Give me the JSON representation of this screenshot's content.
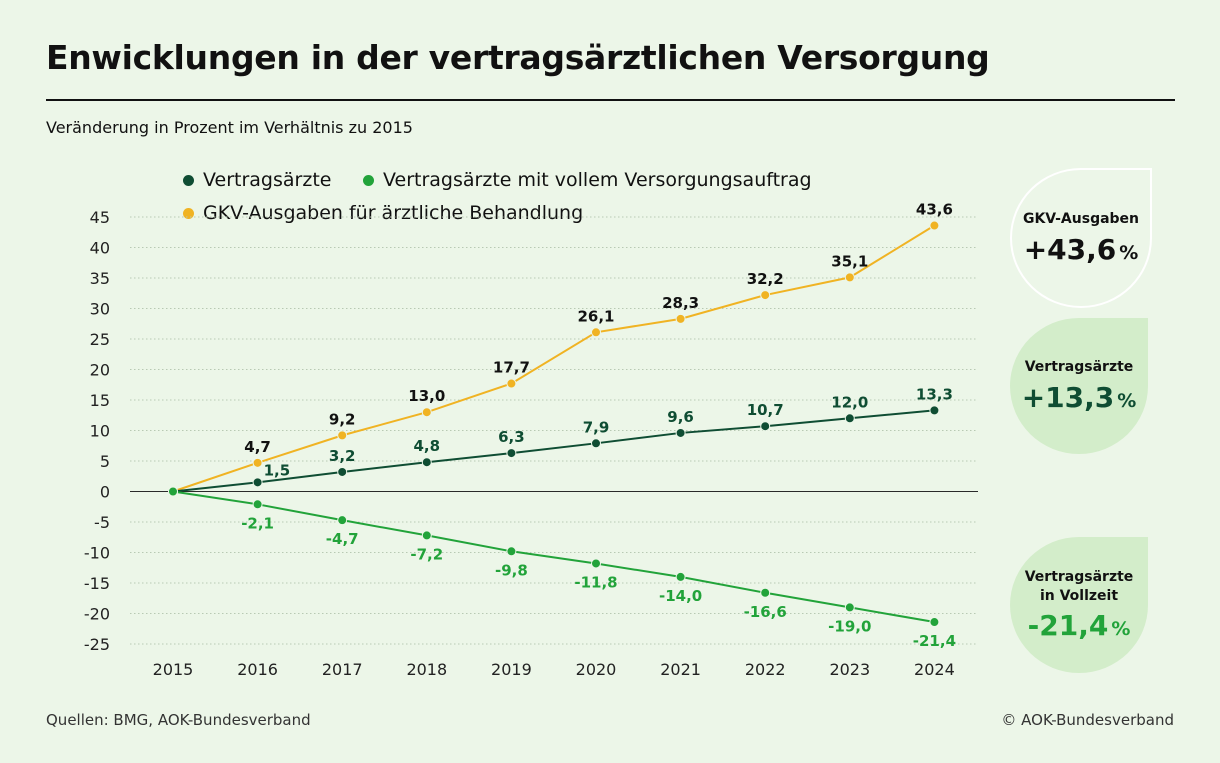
{
  "title": "Enwicklungen in der vertragsärztlichen Versorgung",
  "subtitle": "Veränderung in Prozent im Verhältnis zu 2015",
  "footer": {
    "source": "Quellen: BMG, AOK-Bundesverband",
    "copyright": "© AOK-Bundesverband"
  },
  "colors": {
    "background": "#ecf6e8",
    "dark_green": "#0f4d33",
    "green": "#22a33a",
    "yellow": "#f0b323",
    "grid": "#b8c9b3"
  },
  "cards": {
    "gkv": {
      "label": "GKV-Ausgaben",
      "value": "+43,6",
      "unit": "%"
    },
    "aerzte": {
      "label": "Vertragsärzte",
      "value": "+13,3",
      "unit": "%"
    },
    "vollzeit": {
      "label_line1": "Vertragsärzte",
      "label_line2": "in Vollzeit",
      "value": "-21,4",
      "unit": "%"
    }
  },
  "chart_data": {
    "type": "line",
    "title": "Enwicklungen in der vertragsärztlichen Versorgung",
    "ylabel": "Veränderung in Prozent im Verhältnis zu 2015",
    "ylim": [
      -25,
      45
    ],
    "yticks": [
      45,
      40,
      35,
      30,
      25,
      20,
      15,
      10,
      5,
      0,
      -5,
      -10,
      -15,
      -20,
      -25
    ],
    "grid": true,
    "legend_position": "top",
    "categories": [
      "2015",
      "2016",
      "2017",
      "2018",
      "2019",
      "2020",
      "2021",
      "2022",
      "2023",
      "2024"
    ],
    "series": [
      {
        "key": "gkv",
        "name": "GKV-Ausgaben für ärztliche Behandlung",
        "color": "#f0b323",
        "label_color": "#111111",
        "values": [
          0,
          4.7,
          9.2,
          13.0,
          17.7,
          26.1,
          28.3,
          32.2,
          35.1,
          43.6
        ],
        "labels": [
          "",
          "4,7",
          "9,2",
          "13,0",
          "17,7",
          "26,1",
          "28,3",
          "32,2",
          "35,1",
          "43,6"
        ]
      },
      {
        "key": "aerzte",
        "name": "Vertragsärzte",
        "color": "#0f4d33",
        "label_color": "#0f4d33",
        "values": [
          0,
          1.5,
          3.2,
          4.8,
          6.3,
          7.9,
          9.6,
          10.7,
          12.0,
          13.3
        ],
        "labels": [
          "",
          "1,5",
          "3,2",
          "4,8",
          "6,3",
          "7,9",
          "9,6",
          "10,7",
          "12,0",
          "13,3"
        ]
      },
      {
        "key": "voll",
        "name": "Vertragsärzte mit vollem Versorgungsauftrag",
        "color": "#22a33a",
        "label_color": "#22a33a",
        "values": [
          0,
          -2.1,
          -4.7,
          -7.2,
          -9.8,
          -11.8,
          -14.0,
          -16.6,
          -19.0,
          -21.4
        ],
        "labels": [
          "",
          "-2,1",
          "-4,7",
          "-7,2",
          "-9,8",
          "-11,8",
          "-14,0",
          "-16,6",
          "-19,0",
          "-21,4"
        ]
      }
    ]
  }
}
